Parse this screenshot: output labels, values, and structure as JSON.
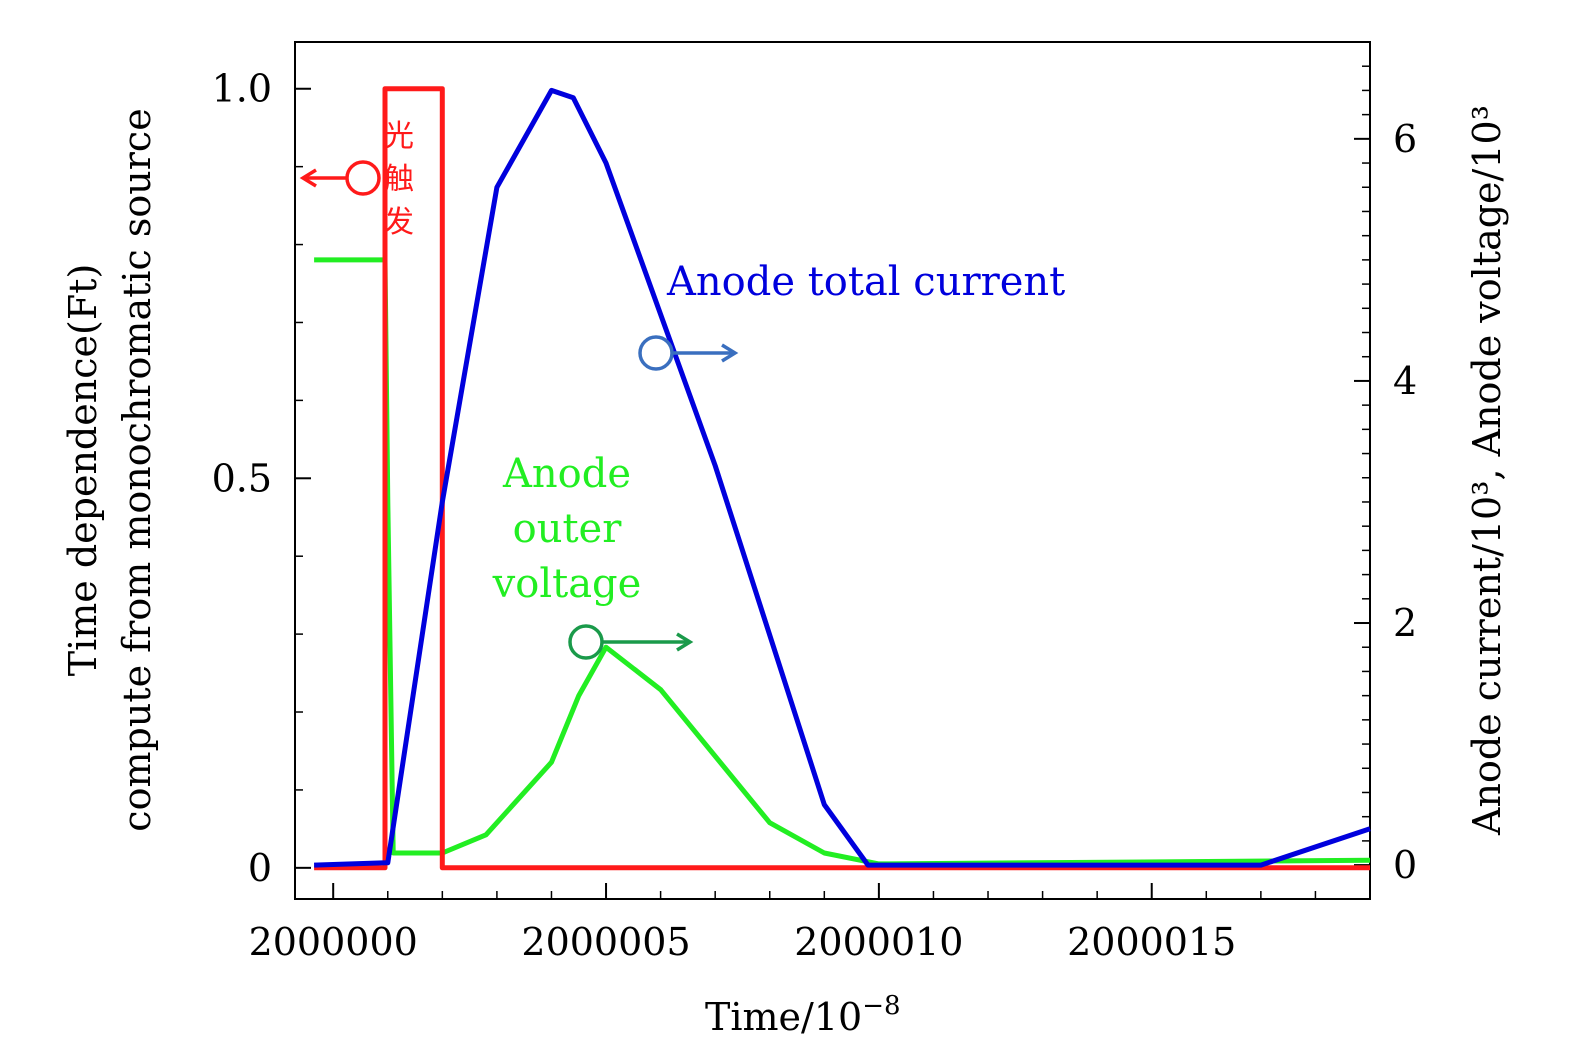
{
  "chart_data": {
    "type": "line",
    "xlabel": "Time/10",
    "xlabel_sup": "−8",
    "ylabel_left_line1": "Time dependence(Ft)",
    "ylabel_left_line2": "compute from monochromatic source",
    "ylabel_right": "Anode current/10³, Anode voltage/10³",
    "xlim": [
      1999999.3,
      2000019.0
    ],
    "ylim_left": [
      -0.04,
      1.06
    ],
    "ylim_right": [
      -0.28,
      6.8
    ],
    "x_ticks": [
      "2000000",
      "2000005",
      "2000010",
      "2000015"
    ],
    "x_tick_values": [
      2000000,
      2000005,
      2000010,
      2000015
    ],
    "y_left_ticks": [
      "0",
      "0.5",
      "1.0"
    ],
    "y_left_tick_values": [
      0,
      0.5,
      1.0
    ],
    "y_right_ticks": [
      "0",
      "2",
      "4",
      "6"
    ],
    "y_right_tick_values": [
      0,
      2,
      4,
      6
    ],
    "series": [
      {
        "name": "光触发",
        "axis": "left",
        "color": "#ff1a1a",
        "x": [
          1999999.65,
          2000000.95,
          2000000.95,
          2000002.0,
          2000002.0,
          2000019.0
        ],
        "y": [
          0,
          0,
          1.0,
          1.0,
          0,
          0
        ]
      },
      {
        "name": "Anode total current",
        "axis": "right",
        "color": "#0000dd",
        "x": [
          1999999.65,
          2000001.0,
          2000002.0,
          2000003.0,
          2000004.0,
          2000004.4,
          2000005.0,
          2000007.0,
          2000009.0,
          2000009.8,
          2000017.0,
          2000019.0
        ],
        "y": [
          0,
          0.02,
          3.0,
          5.6,
          6.4,
          6.34,
          5.8,
          3.3,
          0.5,
          0,
          0,
          0.3
        ]
      },
      {
        "name": "Anode outer voltage",
        "axis": "right",
        "color": "#22ee22",
        "x": [
          1999999.65,
          2000000.95,
          2000001.0,
          2000001.1,
          2000001.3,
          2000002.0,
          2000002.8,
          2000004.0,
          2000004.5,
          2000005.0,
          2000006.0,
          2000008.0,
          2000009.0,
          2000010.0,
          2000019.0
        ],
        "y": [
          5.0,
          5.0,
          3.0,
          0.1,
          0.1,
          0.1,
          0.25,
          0.85,
          1.4,
          1.8,
          1.45,
          0.35,
          0.1,
          0.01,
          0.04
        ]
      }
    ],
    "annotations": {
      "trigger_chars": [
        "光",
        "触",
        "发"
      ],
      "current_label": "Anode total current",
      "voltage_label_lines": [
        "Anode",
        "outer",
        "voltage"
      ]
    },
    "grid": false,
    "legend": "none"
  }
}
